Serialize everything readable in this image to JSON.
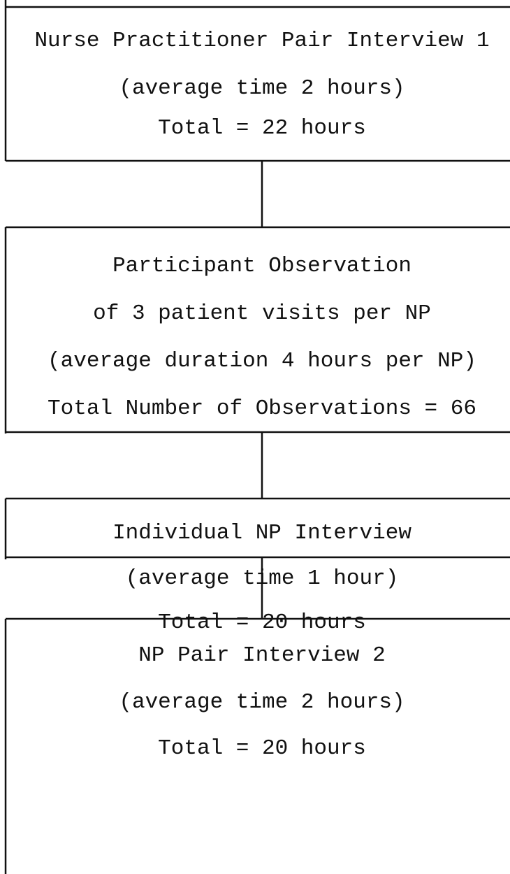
{
  "nodes": [
    {
      "lines": [
        "Nurse Practitioner Pair Interview 1",
        "(average time 2 hours)",
        "Total = 22 hours"
      ]
    },
    {
      "lines": [
        "Participant Observation",
        "of 3 patient visits per NP",
        "(average duration 4 hours per NP)",
        "Total Number of Observations = 66"
      ]
    },
    {
      "lines": [
        "Individual NP Interview",
        "(average time 1 hour)",
        "Total = 20 hours"
      ]
    },
    {
      "lines": [
        "NP Pair Interview 2",
        "(average time 2 hours)",
        "Total = 20 hours"
      ]
    }
  ]
}
